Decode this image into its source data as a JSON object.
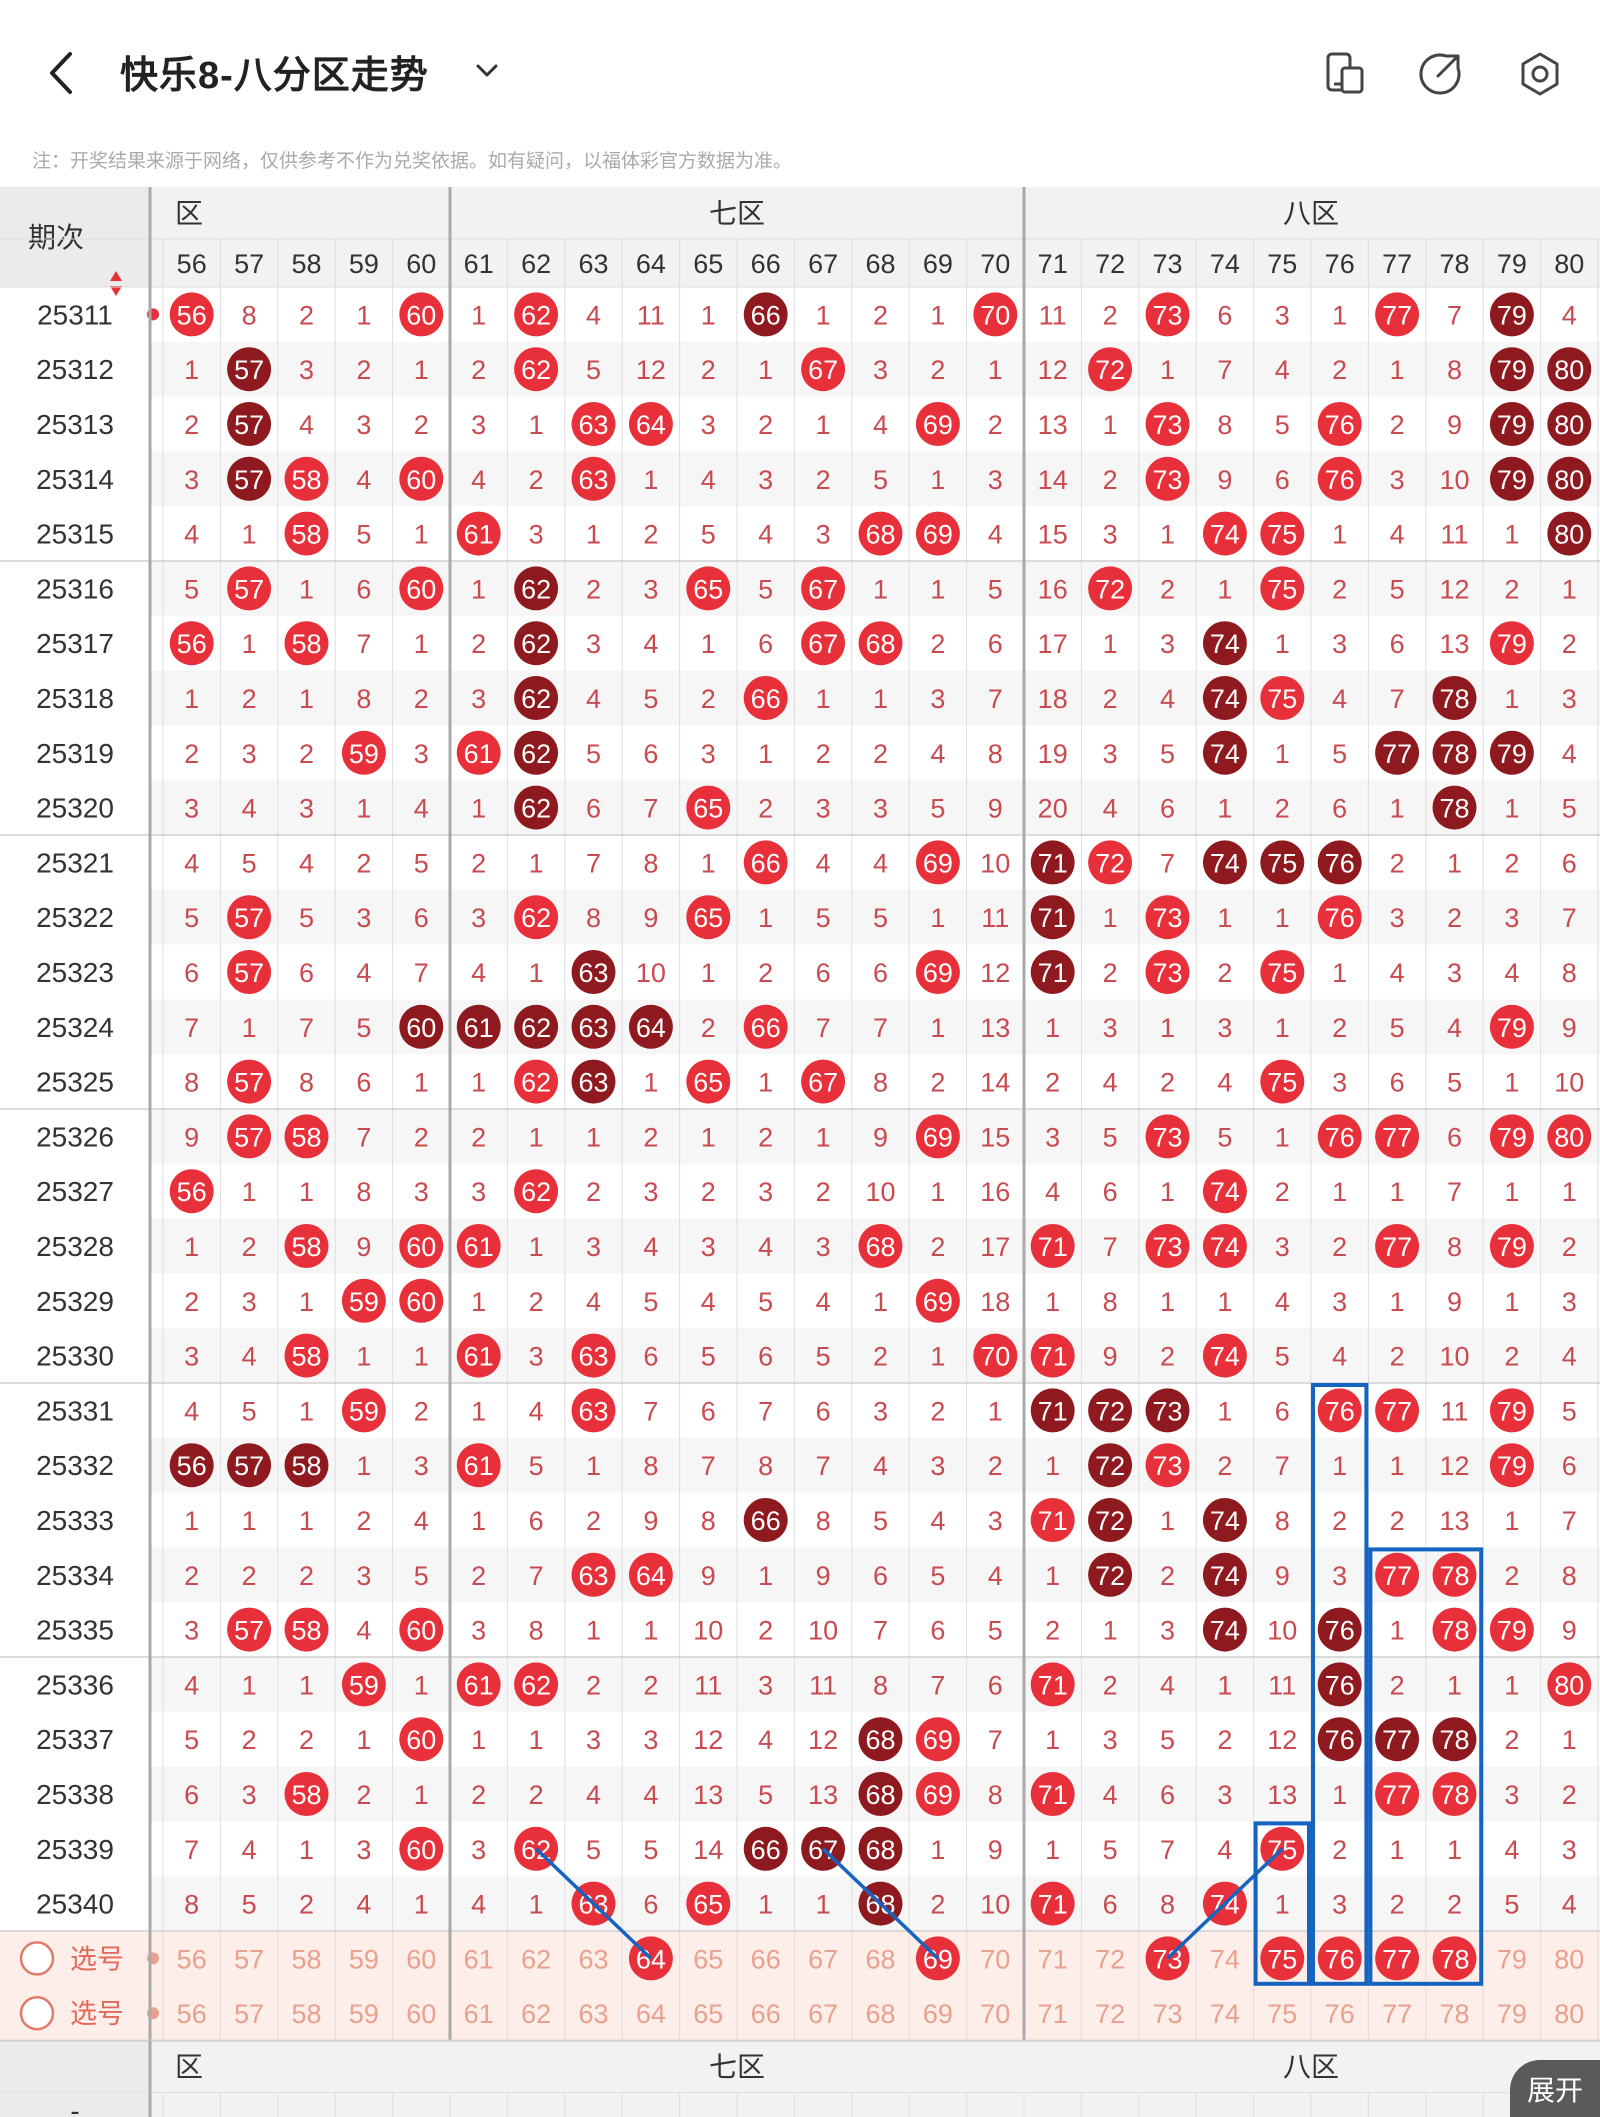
{
  "header": {
    "title": "快乐8-八分区走势",
    "icons": [
      "back-icon",
      "chevron-down-icon",
      "layout-icon",
      "share-icon",
      "settings-icon"
    ]
  },
  "notice": "注：开奖结果来源于网络，仅供参考不作为兑奖依据。如有疑问，以福体彩官方数据为准。",
  "table": {
    "period_header": "期次",
    "zones": [
      {
        "label": "六区",
        "shown": "区",
        "numbers": [
          56,
          57,
          58,
          59,
          60
        ]
      },
      {
        "label": "七区",
        "shown": "七区",
        "numbers": [
          61,
          62,
          63,
          64,
          65,
          66,
          67,
          68,
          69,
          70
        ]
      },
      {
        "label": "八区",
        "shown": "八区",
        "numbers": [
          71,
          72,
          73,
          74,
          75,
          76,
          77,
          78,
          79,
          80
        ]
      }
    ],
    "columns": [
      56,
      57,
      58,
      59,
      60,
      61,
      62,
      63,
      64,
      65,
      66,
      67,
      68,
      69,
      70,
      71,
      72,
      73,
      74,
      75,
      76,
      77,
      78,
      79,
      80
    ],
    "rows": [
      {
        "period": "25311",
        "cells": [
          "56",
          8,
          2,
          1,
          "60",
          1,
          "62",
          4,
          11,
          1,
          "66",
          1,
          2,
          1,
          "70",
          11,
          2,
          "73",
          6,
          3,
          1,
          "77",
          7,
          "79",
          4
        ],
        "dark": [
          66,
          79
        ]
      },
      {
        "period": "25312",
        "cells": [
          1,
          "57",
          3,
          2,
          1,
          2,
          "62",
          5,
          12,
          2,
          1,
          "67",
          3,
          2,
          1,
          12,
          "72",
          1,
          7,
          4,
          2,
          1,
          8,
          "79",
          "80"
        ],
        "dark": [
          57,
          79,
          80
        ]
      },
      {
        "period": "25313",
        "cells": [
          2,
          "57",
          4,
          3,
          2,
          3,
          1,
          "63",
          "64",
          3,
          2,
          1,
          4,
          "69",
          2,
          13,
          1,
          "73",
          8,
          5,
          "76",
          2,
          9,
          "79",
          "80"
        ],
        "dark": [
          57,
          79,
          80
        ]
      },
      {
        "period": "25314",
        "cells": [
          3,
          "57",
          "58",
          4,
          "60",
          4,
          2,
          "63",
          1,
          4,
          3,
          2,
          5,
          1,
          3,
          14,
          2,
          "73",
          9,
          6,
          "76",
          3,
          10,
          "79",
          "80"
        ],
        "dark": [
          57,
          79,
          80
        ]
      },
      {
        "period": "25315",
        "cells": [
          4,
          1,
          "58",
          5,
          1,
          "61",
          3,
          1,
          2,
          5,
          4,
          3,
          "68",
          "69",
          4,
          15,
          3,
          1,
          "74",
          "75",
          1,
          4,
          11,
          1,
          "80"
        ],
        "dark": [
          80
        ]
      },
      {
        "period": "25316",
        "cells": [
          5,
          "57",
          1,
          6,
          "60",
          1,
          "62",
          2,
          3,
          "65",
          5,
          "67",
          1,
          1,
          5,
          16,
          "72",
          2,
          1,
          "75",
          2,
          5,
          12,
          2,
          1
        ],
        "dark": [
          62
        ]
      },
      {
        "period": "25317",
        "cells": [
          "56",
          1,
          "58",
          7,
          1,
          2,
          "62",
          3,
          4,
          1,
          6,
          "67",
          "68",
          2,
          6,
          17,
          1,
          3,
          "74",
          1,
          3,
          6,
          13,
          "79",
          2
        ],
        "dark": [
          62,
          74
        ]
      },
      {
        "period": "25318",
        "cells": [
          1,
          2,
          1,
          8,
          2,
          3,
          "62",
          4,
          5,
          2,
          "66",
          1,
          1,
          3,
          7,
          18,
          2,
          4,
          "74",
          "75",
          4,
          7,
          "78",
          1,
          3
        ],
        "dark": [
          62,
          74,
          78
        ]
      },
      {
        "period": "25319",
        "cells": [
          2,
          3,
          2,
          "59",
          3,
          "61",
          "62",
          5,
          6,
          3,
          1,
          2,
          2,
          4,
          8,
          19,
          3,
          5,
          "74",
          1,
          5,
          "77",
          "78",
          "79",
          4
        ],
        "dark": [
          62,
          74,
          77,
          78,
          79
        ]
      },
      {
        "period": "25320",
        "cells": [
          3,
          4,
          3,
          1,
          4,
          1,
          "62",
          6,
          7,
          "65",
          2,
          3,
          3,
          5,
          9,
          20,
          4,
          6,
          1,
          2,
          6,
          1,
          "78",
          1,
          5
        ],
        "dark": [
          62,
          78
        ]
      },
      {
        "period": "25321",
        "cells": [
          4,
          5,
          4,
          2,
          5,
          2,
          1,
          7,
          8,
          1,
          "66",
          4,
          4,
          "69",
          10,
          "71",
          "72",
          7,
          "74",
          "75",
          "76",
          2,
          1,
          2,
          6
        ],
        "dark": [
          71,
          74,
          75,
          76
        ]
      },
      {
        "period": "25322",
        "cells": [
          5,
          "57",
          5,
          3,
          6,
          3,
          "62",
          8,
          9,
          "65",
          1,
          5,
          5,
          1,
          11,
          "71",
          1,
          "73",
          1,
          1,
          "76",
          3,
          2,
          3,
          7
        ],
        "dark": [
          71
        ]
      },
      {
        "period": "25323",
        "cells": [
          6,
          "57",
          6,
          4,
          7,
          4,
          1,
          "63",
          10,
          1,
          2,
          6,
          6,
          "69",
          12,
          "71",
          2,
          "73",
          2,
          "75",
          1,
          4,
          3,
          4,
          8
        ],
        "dark": [
          63,
          71
        ]
      },
      {
        "period": "25324",
        "cells": [
          7,
          1,
          7,
          5,
          "60",
          "61",
          "62",
          "63",
          "64",
          2,
          "66",
          7,
          7,
          1,
          13,
          1,
          3,
          1,
          3,
          1,
          2,
          5,
          4,
          "79",
          9
        ],
        "dark": [
          60,
          61,
          62,
          63,
          64
        ]
      },
      {
        "period": "25325",
        "cells": [
          8,
          "57",
          8,
          6,
          1,
          1,
          "62",
          "63",
          1,
          "65",
          1,
          "67",
          8,
          2,
          14,
          2,
          4,
          2,
          4,
          "75",
          3,
          6,
          5,
          1,
          10
        ],
        "dark": [
          63
        ]
      },
      {
        "period": "25326",
        "cells": [
          9,
          "57",
          "58",
          7,
          2,
          2,
          1,
          1,
          2,
          1,
          2,
          1,
          9,
          "69",
          15,
          3,
          5,
          "73",
          5,
          1,
          "76",
          "77",
          6,
          "79",
          "80"
        ],
        "dark": []
      },
      {
        "period": "25327",
        "cells": [
          "56",
          1,
          1,
          8,
          3,
          3,
          "62",
          2,
          3,
          2,
          3,
          2,
          10,
          1,
          16,
          4,
          6,
          1,
          "74",
          2,
          1,
          1,
          7,
          1,
          1
        ],
        "dark": []
      },
      {
        "period": "25328",
        "cells": [
          1,
          2,
          "58",
          9,
          "60",
          "61",
          1,
          3,
          4,
          3,
          4,
          3,
          "68",
          2,
          17,
          "71",
          7,
          "73",
          "74",
          3,
          2,
          "77",
          8,
          "79",
          2
        ],
        "dark": []
      },
      {
        "period": "25329",
        "cells": [
          2,
          3,
          1,
          "59",
          "60",
          1,
          2,
          4,
          5,
          4,
          5,
          4,
          1,
          "69",
          18,
          1,
          8,
          1,
          1,
          4,
          3,
          1,
          9,
          1,
          3
        ],
        "dark": []
      },
      {
        "period": "25330",
        "cells": [
          3,
          4,
          "58",
          1,
          1,
          "61",
          3,
          "63",
          6,
          5,
          6,
          5,
          2,
          1,
          "70",
          "71",
          9,
          2,
          "74",
          5,
          4,
          2,
          10,
          2,
          4
        ],
        "dark": []
      },
      {
        "period": "25331",
        "cells": [
          4,
          5,
          1,
          "59",
          2,
          1,
          4,
          "63",
          7,
          6,
          7,
          6,
          3,
          2,
          1,
          "71",
          "72",
          "73",
          1,
          6,
          "76",
          "77",
          11,
          "79",
          5
        ],
        "dark": [
          71,
          72,
          73
        ]
      },
      {
        "period": "25332",
        "cells": [
          "56",
          "57",
          "58",
          1,
          3,
          "61",
          5,
          1,
          8,
          7,
          8,
          7,
          4,
          3,
          2,
          1,
          "72",
          "73",
          2,
          7,
          1,
          1,
          12,
          "79",
          6
        ],
        "dark": [
          56,
          57,
          58,
          72
        ]
      },
      {
        "period": "25333",
        "cells": [
          1,
          1,
          1,
          2,
          4,
          1,
          6,
          2,
          9,
          8,
          "66",
          8,
          5,
          4,
          3,
          "71",
          "72",
          1,
          "74",
          8,
          2,
          2,
          13,
          1,
          7
        ],
        "dark": [
          66,
          72,
          74
        ]
      },
      {
        "period": "25334",
        "cells": [
          2,
          2,
          2,
          3,
          5,
          2,
          7,
          "63",
          "64",
          9,
          1,
          9,
          6,
          5,
          4,
          1,
          "72",
          2,
          "74",
          9,
          3,
          "77",
          "78",
          2,
          8
        ],
        "dark": [
          72,
          74
        ]
      },
      {
        "period": "25335",
        "cells": [
          3,
          "57",
          "58",
          4,
          "60",
          3,
          8,
          1,
          1,
          10,
          2,
          10,
          7,
          6,
          5,
          2,
          1,
          3,
          "74",
          10,
          "76",
          1,
          "78",
          "79",
          9
        ],
        "dark": [
          74,
          76
        ]
      },
      {
        "period": "25336",
        "cells": [
          4,
          1,
          1,
          "59",
          1,
          "61",
          "62",
          2,
          2,
          11,
          3,
          11,
          8,
          7,
          6,
          "71",
          2,
          4,
          1,
          11,
          "76",
          2,
          1,
          1,
          "80"
        ],
        "dark": [
          76
        ]
      },
      {
        "period": "25337",
        "cells": [
          5,
          2,
          2,
          1,
          "60",
          1,
          1,
          3,
          3,
          12,
          4,
          12,
          "68",
          "69",
          7,
          1,
          3,
          5,
          2,
          12,
          "76",
          "77",
          "78",
          2,
          1
        ],
        "dark": [
          68,
          76,
          77,
          78
        ]
      },
      {
        "period": "25338",
        "cells": [
          6,
          3,
          "58",
          2,
          1,
          2,
          2,
          4,
          4,
          13,
          5,
          13,
          "68",
          "69",
          8,
          "71",
          4,
          6,
          3,
          13,
          1,
          "77",
          "78",
          3,
          2
        ],
        "dark": [
          68
        ]
      },
      {
        "period": "25339",
        "cells": [
          7,
          4,
          1,
          3,
          "60",
          3,
          "62",
          5,
          5,
          14,
          "66",
          "67",
          "68",
          1,
          9,
          1,
          5,
          7,
          4,
          "75",
          2,
          1,
          1,
          4,
          3
        ],
        "dark": [
          66,
          67,
          68
        ]
      },
      {
        "period": "25340",
        "cells": [
          8,
          5,
          2,
          4,
          1,
          4,
          1,
          "63",
          6,
          "65",
          1,
          1,
          "68",
          2,
          10,
          "71",
          6,
          8,
          "74",
          1,
          3,
          2,
          2,
          5,
          4
        ],
        "dark": [
          68
        ]
      }
    ],
    "select_rows": [
      {
        "label": "选号",
        "selected": [
          64,
          69,
          73,
          75,
          76,
          77,
          78
        ]
      },
      {
        "label": "选号",
        "selected": []
      }
    ],
    "footer_zones": [
      "区",
      "七区",
      "八区"
    ],
    "footer_left": "-"
  },
  "expand_button": "展开",
  "colors": {
    "ball": "#e8303a",
    "ball_dark": "#8e1a1f",
    "number_text": "#c94a4f",
    "stripe": "#f6f6f6",
    "select_bg": "#fdeee9",
    "select_text": "#e9a08d",
    "annotation": "#1565c0",
    "grid_line": "#dedede",
    "zone_divider": "#a9a9a9"
  }
}
